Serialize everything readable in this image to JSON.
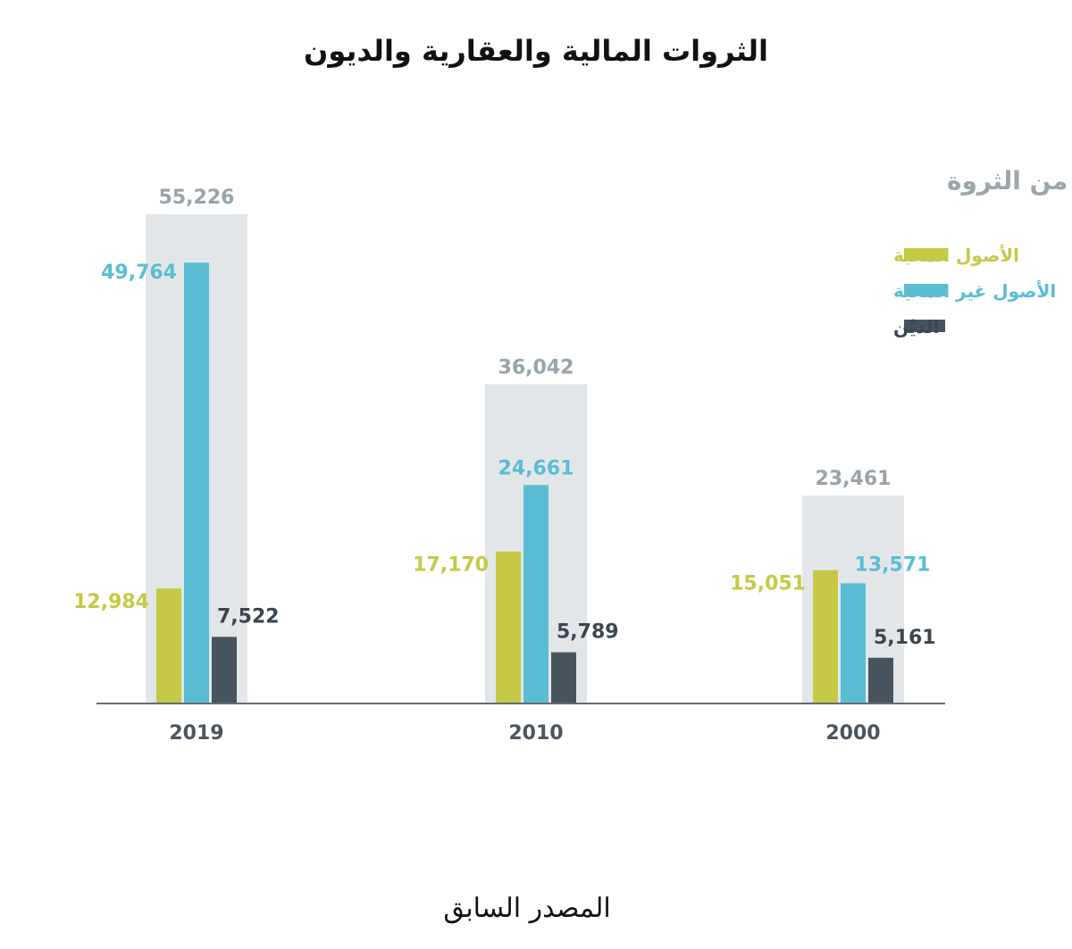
{
  "title": "الثروات المالية والعقارية والديون",
  "footer": "المصدر السابق",
  "colors": {
    "financial": "#c5c945",
    "non_financial": "#5bbdd3",
    "debt": "#465460",
    "total_band": "#e3e6e9",
    "total_label": "#98a3ab",
    "axis": "#666c72"
  },
  "chart_data": {
    "type": "bar",
    "subtitle": "حصة الفرد البالغ من الثروة",
    "categories": [
      "2019",
      "2010",
      "2000"
    ],
    "totals": [
      55226,
      36042,
      23461
    ],
    "total_labels": [
      "55,226",
      "36,042",
      "23,461"
    ],
    "series": [
      {
        "name": "الأصول المالية",
        "key": "financial",
        "values": [
          12984,
          17170,
          15051
        ],
        "labels": [
          "12,984",
          "17,170",
          "15,051"
        ]
      },
      {
        "name": "الأصول غير المالية",
        "key": "non_financial",
        "values": [
          49764,
          24661,
          13571
        ],
        "labels": [
          "49,764",
          "24,661",
          "13,571"
        ]
      },
      {
        "name": "الديْن",
        "key": "debt",
        "values": [
          7522,
          5789,
          5161
        ],
        "labels": [
          "7,522",
          "5,789",
          "5,161"
        ]
      }
    ],
    "legend_position": "top-right",
    "grid": false,
    "ylim": [
      0,
      55226
    ]
  }
}
